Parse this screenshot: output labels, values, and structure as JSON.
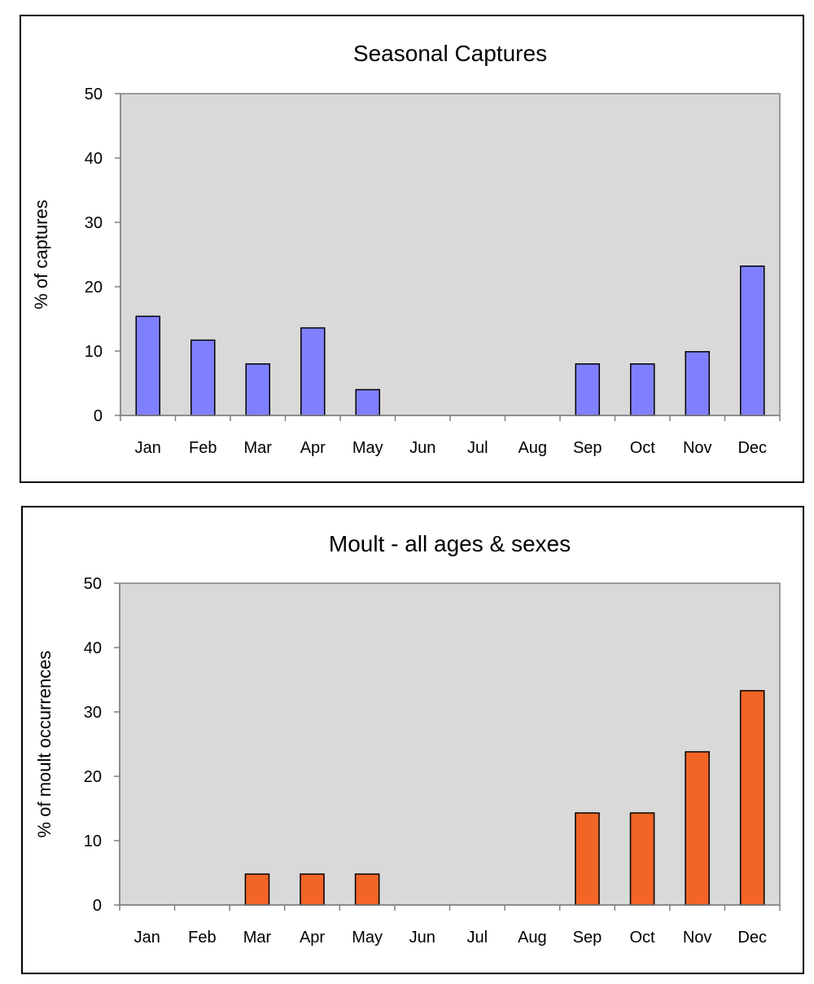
{
  "chart_data": [
    {
      "type": "bar",
      "title": "Seasonal Captures",
      "xlabel": "",
      "ylabel": "% of captures",
      "categories": [
        "Jan",
        "Feb",
        "Mar",
        "Apr",
        "May",
        "Jun",
        "Jul",
        "Aug",
        "Sep",
        "Oct",
        "Nov",
        "Dec"
      ],
      "values": [
        15.4,
        11.7,
        8.0,
        13.6,
        4.0,
        0,
        0,
        0,
        8.0,
        8.0,
        9.9,
        23.2
      ],
      "ylim": [
        0,
        50
      ],
      "yticks": [
        0,
        10,
        20,
        30,
        40,
        50
      ],
      "bar_color": "#8080ff",
      "plot_background": "#d9d9d9",
      "grid": false,
      "legend": false
    },
    {
      "type": "bar",
      "title": "Moult - all ages & sexes",
      "xlabel": "",
      "ylabel": "% of moult occurrences",
      "categories": [
        "Jan",
        "Feb",
        "Mar",
        "Apr",
        "May",
        "Jun",
        "Jul",
        "Aug",
        "Sep",
        "Oct",
        "Nov",
        "Dec"
      ],
      "values": [
        0,
        0,
        4.8,
        4.8,
        4.8,
        0,
        0,
        0,
        14.3,
        14.3,
        23.8,
        33.3
      ],
      "ylim": [
        0,
        50
      ],
      "yticks": [
        0,
        10,
        20,
        30,
        40,
        50
      ],
      "bar_color": "#f26527",
      "plot_background": "#d9d9d9",
      "grid": false,
      "legend": false
    }
  ]
}
